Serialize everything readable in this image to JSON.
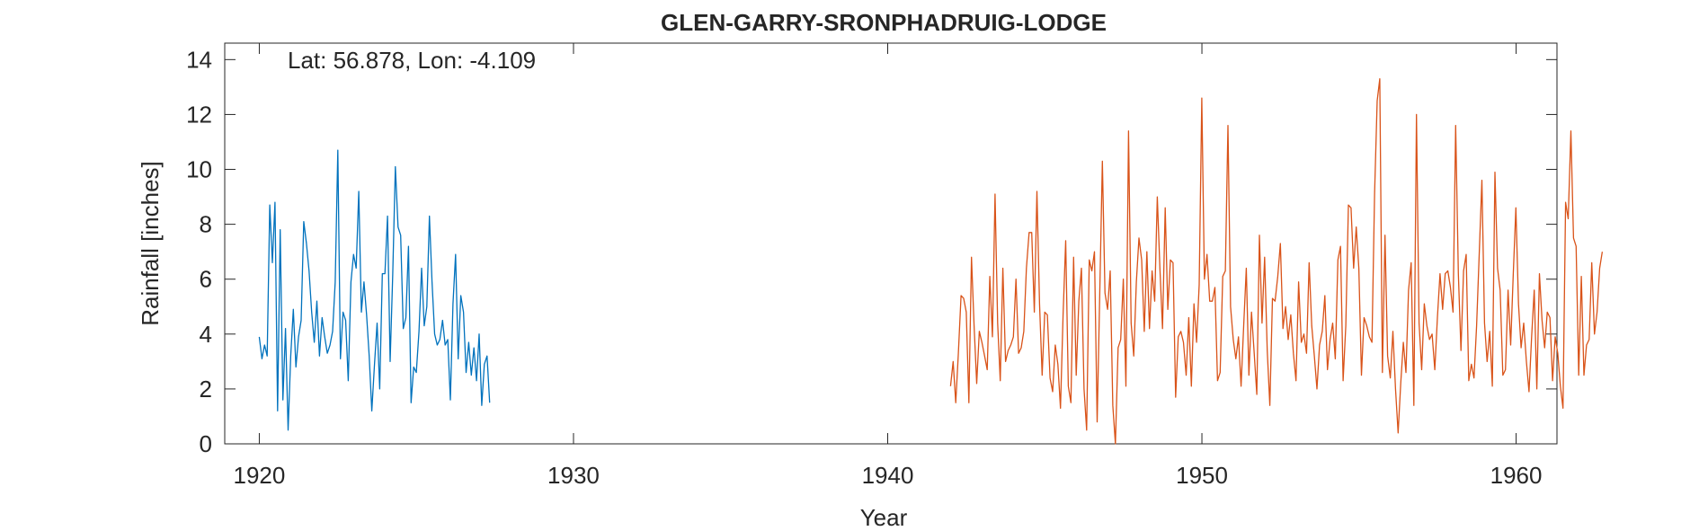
{
  "chart_data": {
    "type": "line",
    "title": "GLEN-GARRY-SRONPHADRUIG-LODGE",
    "annotation": "Lat: 56.878, Lon: -4.109",
    "xlabel": "Year",
    "ylabel": "Rainfall [inches]",
    "xlim": [
      1918.9,
      1961.3
    ],
    "ylim": [
      0,
      14.6
    ],
    "xticks": [
      1920,
      1930,
      1940,
      1950,
      1960
    ],
    "yticks": [
      0,
      2,
      4,
      6,
      8,
      10,
      12,
      14
    ],
    "grid": false,
    "legend": "none",
    "series": [
      {
        "color": "#0072BD",
        "x_start": 1920.0,
        "x_step": 0.0833,
        "values": [
          3.9,
          3.1,
          3.6,
          3.2,
          8.7,
          6.6,
          8.8,
          1.2,
          7.8,
          1.6,
          4.2,
          0.5,
          3.2,
          4.9,
          2.8,
          3.9,
          4.5,
          8.1,
          7.3,
          6.3,
          4.8,
          3.7,
          5.2,
          3.2,
          4.6,
          3.9,
          3.3,
          3.6,
          4.1,
          5.9,
          10.7,
          3.1,
          4.8,
          4.5,
          2.3,
          5.9,
          6.9,
          6.4,
          9.2,
          4.8,
          5.9,
          4.7,
          3.2,
          1.2,
          2.9,
          4.4,
          2.0,
          6.2,
          6.2,
          8.3,
          3.0,
          6.2,
          10.1,
          7.9,
          7.6,
          4.2,
          4.6,
          7.2,
          1.5,
          2.8,
          2.6,
          4.1,
          6.4,
          4.3,
          5.0,
          8.3,
          5.9,
          4.0,
          3.6,
          3.8,
          4.5,
          3.6,
          3.8,
          1.6,
          5.1,
          6.9,
          3.1,
          5.4,
          4.8,
          2.6,
          3.7,
          2.5,
          3.5,
          2.3,
          4.0,
          1.4,
          2.9,
          3.2,
          1.5
        ]
      },
      {
        "color": "#D95319",
        "x_start": 1942.0,
        "x_step": 0.0833,
        "values": [
          2.1,
          3.0,
          1.5,
          3.3,
          5.4,
          5.3,
          4.8,
          1.5,
          6.8,
          4.3,
          2.2,
          4.1,
          3.7,
          3.2,
          2.7,
          6.1,
          3.9,
          9.1,
          4.4,
          2.3,
          6.4,
          3.0,
          3.4,
          3.6,
          3.9,
          6.0,
          3.3,
          3.5,
          4.1,
          6.4,
          7.7,
          7.7,
          4.8,
          9.2,
          5.1,
          2.5,
          4.8,
          4.7,
          2.4,
          1.9,
          3.6,
          2.9,
          1.3,
          4.7,
          7.4,
          2.1,
          1.5,
          6.8,
          2.5,
          5.2,
          6.4,
          2.0,
          0.5,
          6.7,
          6.3,
          7.0,
          0.8,
          5.5,
          10.3,
          5.5,
          4.9,
          6.3,
          1.4,
          0.0,
          3.5,
          3.8,
          6.0,
          2.1,
          11.4,
          4.4,
          3.2,
          5.9,
          7.5,
          6.7,
          4.1,
          7.0,
          4.2,
          6.3,
          5.2,
          9.0,
          6.4,
          4.2,
          8.6,
          4.9,
          6.7,
          6.6,
          1.7,
          3.9,
          4.1,
          3.7,
          2.5,
          4.6,
          2.1,
          5.1,
          3.7,
          5.8,
          12.6,
          6.0,
          6.9,
          5.2,
          5.2,
          5.7,
          2.3,
          2.6,
          6.1,
          6.3,
          11.6,
          5.0,
          3.8,
          3.1,
          3.9,
          2.1,
          4.3,
          6.4,
          2.5,
          4.8,
          3.3,
          1.8,
          7.6,
          4.4,
          6.8,
          3.4,
          1.4,
          5.3,
          5.2,
          6.1,
          7.3,
          4.2,
          5.0,
          3.8,
          4.7,
          3.3,
          2.3,
          5.9,
          3.7,
          4.0,
          3.3,
          6.6,
          4.3,
          3.2,
          2.0,
          3.6,
          4.1,
          5.4,
          2.7,
          3.8,
          4.4,
          3.1,
          6.7,
          7.2,
          2.3,
          4.3,
          8.7,
          8.6,
          6.4,
          7.9,
          6.4,
          2.5,
          4.6,
          4.3,
          3.9,
          3.7,
          9.1,
          12.5,
          13.3,
          2.6,
          7.6,
          3.2,
          2.4,
          4.1,
          2.0,
          0.4,
          2.2,
          3.7,
          2.6,
          5.6,
          6.6,
          1.4,
          12.0,
          4.4,
          2.7,
          5.1,
          4.3,
          3.8,
          4.0,
          2.7,
          4.6,
          6.2,
          4.9,
          6.2,
          6.3,
          5.7,
          4.8,
          11.6,
          6.2,
          3.4,
          6.3,
          6.9,
          2.3,
          2.9,
          2.4,
          4.3,
          6.9,
          9.6,
          4.4,
          3.0,
          4.1,
          2.1,
          9.9,
          6.4,
          5.6,
          2.5,
          2.7,
          5.6,
          3.6,
          6.2,
          8.6,
          5.1,
          3.5,
          4.4,
          3.0,
          1.9,
          3.9,
          5.6,
          2.0,
          6.2,
          4.5,
          3.5,
          4.8,
          4.6,
          2.3,
          3.9,
          3.3,
          2.1,
          1.3,
          8.8,
          8.2,
          11.4,
          7.5,
          7.2,
          2.5,
          6.1,
          2.5,
          3.6,
          3.8,
          6.6,
          4.0,
          4.8,
          6.4,
          7.0
        ]
      }
    ]
  }
}
